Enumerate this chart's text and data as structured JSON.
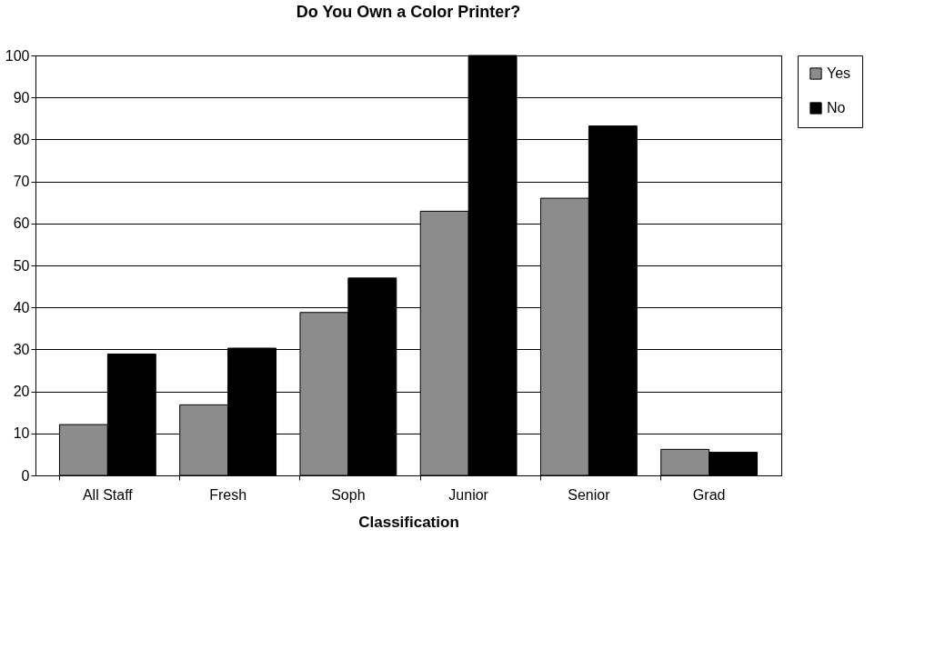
{
  "chart_data": {
    "type": "bar",
    "title": "Do You Own a Color Printer?",
    "xlabel": "Classification",
    "categories": [
      "All Staff",
      "Fresh",
      "Soph",
      "Junior",
      "Senior",
      "Grad"
    ],
    "series": [
      {
        "name": "Yes",
        "color": "#8c8c8c",
        "values": [
          12.1,
          16.8,
          38.8,
          62.9,
          66.0,
          6.2
        ]
      },
      {
        "name": "No",
        "color": "#000000",
        "values": [
          28.9,
          30.3,
          47.0,
          100,
          83.2,
          5.5
        ]
      }
    ],
    "ylim": [
      0,
      100
    ],
    "yticks": [
      0,
      10,
      20,
      30,
      40,
      50,
      60,
      70,
      80,
      90,
      100
    ],
    "grid": "y",
    "legend": "right"
  }
}
